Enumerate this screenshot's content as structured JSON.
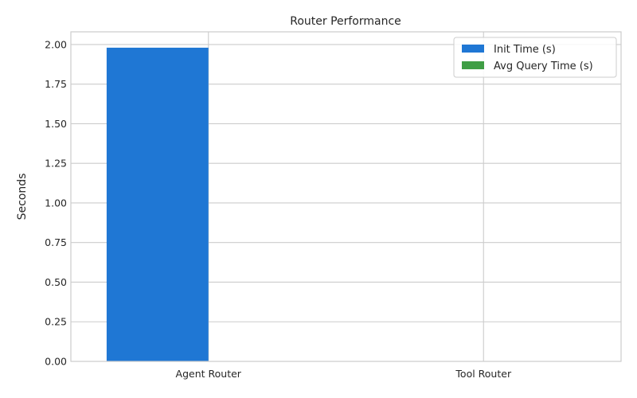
{
  "chart_data": {
    "type": "bar",
    "title": "Router Performance",
    "xlabel": "",
    "ylabel": "Seconds",
    "categories": [
      "Agent Router",
      "Tool Router"
    ],
    "series": [
      {
        "name": "Init Time (s)",
        "color": "#1f77d4",
        "values": [
          1.98,
          0.0
        ]
      },
      {
        "name": "Avg Query Time (s)",
        "color": "#3f9e45",
        "values": [
          0.0,
          0.0
        ]
      }
    ],
    "ylim": [
      0,
      2.08
    ],
    "yticks": [
      0.0,
      0.25,
      0.5,
      0.75,
      1.0,
      1.25,
      1.5,
      1.75,
      2.0
    ],
    "ytick_labels": [
      "0.00",
      "0.25",
      "0.50",
      "0.75",
      "1.00",
      "1.25",
      "1.50",
      "1.75",
      "2.00"
    ],
    "grid": true,
    "legend": "top-right"
  }
}
